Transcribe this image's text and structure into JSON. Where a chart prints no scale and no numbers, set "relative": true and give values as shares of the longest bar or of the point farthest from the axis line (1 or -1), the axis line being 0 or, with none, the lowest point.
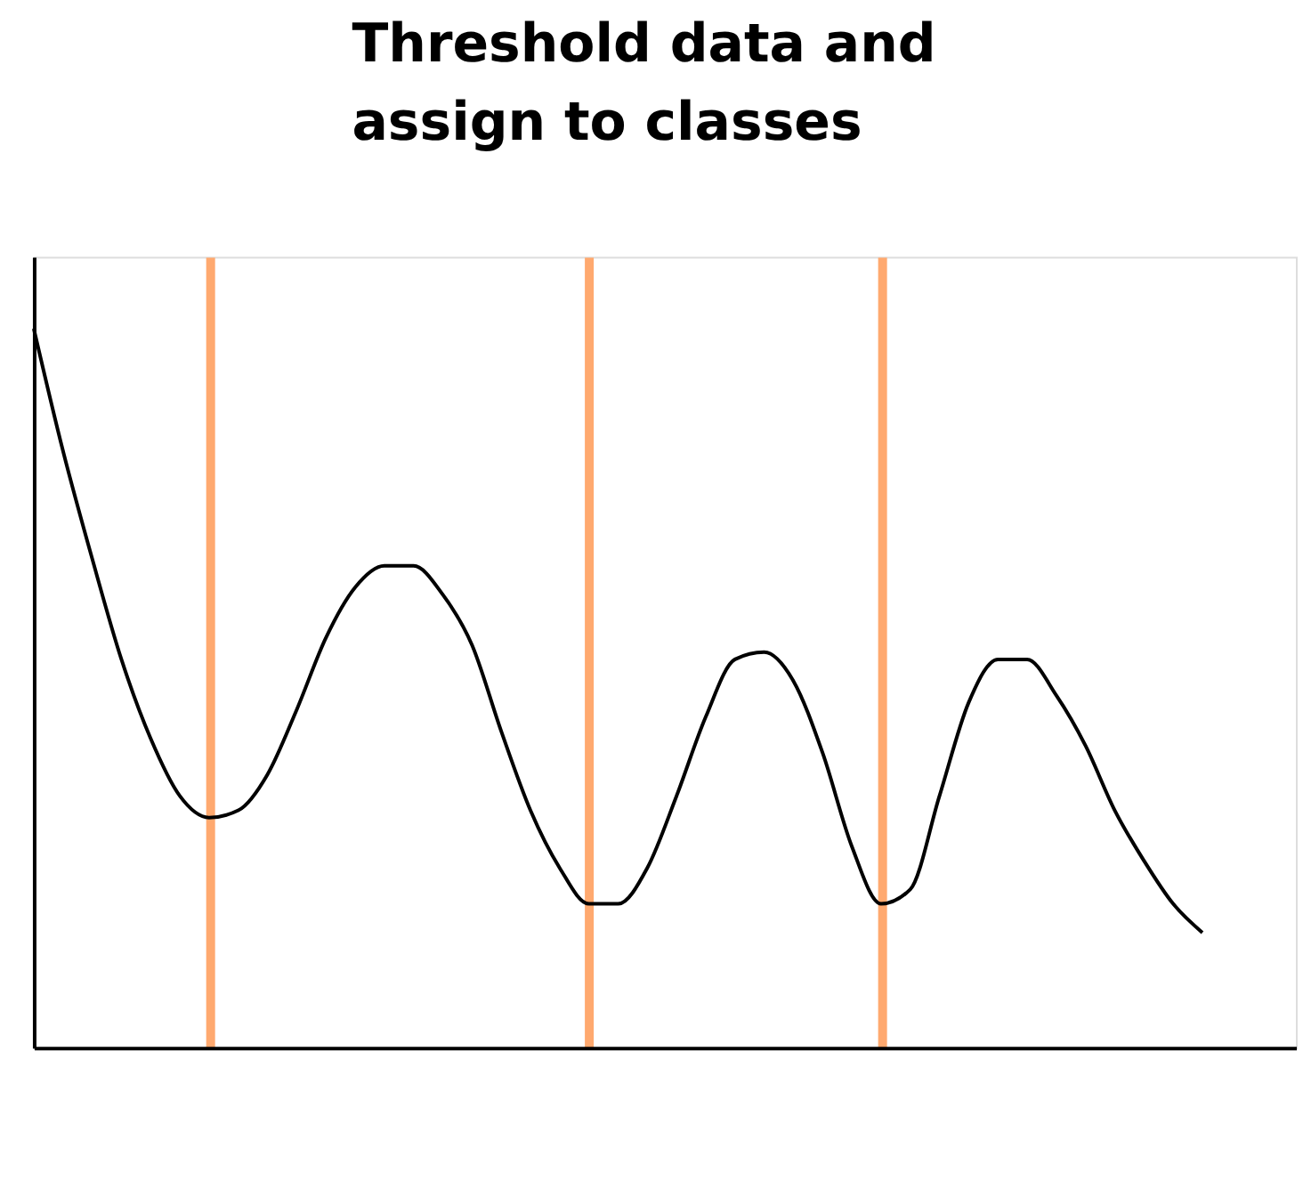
{
  "chart_data": {
    "type": "line",
    "relative": true,
    "tick_labels": false,
    "grid": "x",
    "marker": "none",
    "line_style": "solid",
    "annotations": [
      "Threshold data and\nassign to classes"
    ],
    "categories": [
      null,
      null,
      null,
      null,
      null,
      null,
      null,
      null,
      null,
      null,
      null,
      null,
      null,
      null,
      null,
      null,
      null,
      null,
      null,
      null,
      null,
      null,
      null,
      null,
      null,
      null,
      null,
      null,
      null,
      null,
      null,
      null,
      null,
      null,
      null,
      null,
      null,
      null,
      null,
      null,
      null
    ],
    "series": [
      {
        "color": "#000000",
        "values": [
          1.0,
          0.83,
          0.68,
          0.54,
          0.43,
          0.35,
          0.32,
          0.33,
          0.38,
          0.47,
          0.57,
          0.64,
          0.67,
          0.67,
          0.63,
          0.56,
          0.44,
          0.33,
          0.25,
          0.2,
          0.2,
          0.25,
          0.35,
          0.46,
          0.54,
          0.55,
          0.51,
          0.41,
          0.28,
          0.2,
          0.22,
          0.35,
          0.48,
          0.54,
          0.54,
          0.49,
          0.42,
          0.33,
          0.26,
          0.2,
          0.16
        ]
      }
    ]
  }
}
